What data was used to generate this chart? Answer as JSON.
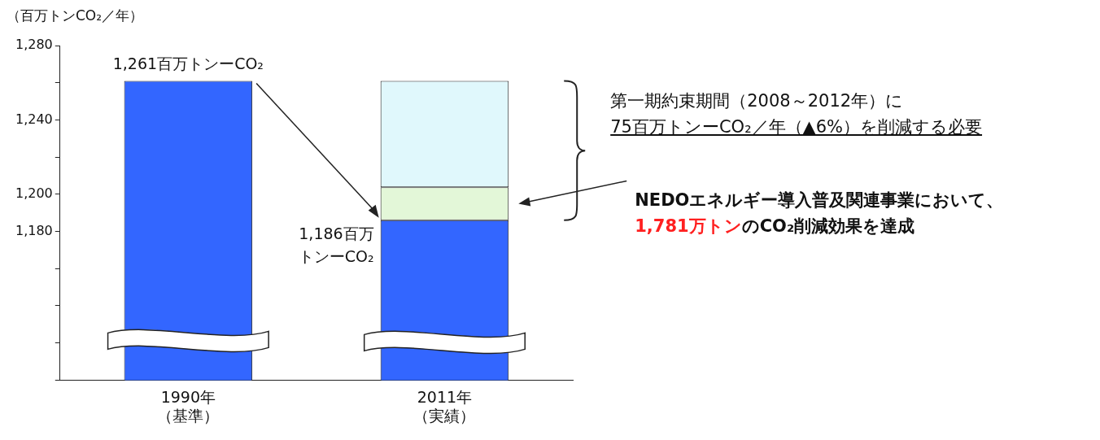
{
  "chart_data": {
    "type": "bar",
    "stacked": true,
    "ylabel": "（百万トンCO₂／年）",
    "categories": [
      "1990年（基準）",
      "2011年（実績）"
    ],
    "series": [
      {
        "color": "#3366ff",
        "values": [
          1261,
          1186
        ]
      },
      {
        "color": "#e3f7d8",
        "base": [
          null,
          1186
        ],
        "values": [
          null,
          17.8
        ]
      },
      {
        "color": "#e0f8fc",
        "base": [
          null,
          1203.8
        ],
        "values": [
          null,
          57.2
        ]
      }
    ],
    "ylim": [
      1100,
      1280
    ],
    "yticks": [
      {
        "value": 1100,
        "label": null
      },
      {
        "value": 1120,
        "label": null
      },
      {
        "value": 1140,
        "label": null
      },
      {
        "value": 1160,
        "label": null
      },
      {
        "value": 1180,
        "label": "1,180"
      },
      {
        "value": 1200,
        "label": "1,200"
      },
      {
        "value": 1220,
        "label": null
      },
      {
        "value": 1240,
        "label": "1,240"
      },
      {
        "value": 1260,
        "label": null
      },
      {
        "value": 1280,
        "label": "1,280"
      }
    ],
    "grid": false,
    "legend": false,
    "annotations": [
      {
        "text": "1,261百万トンーCO₂",
        "x": "1990年（基準）",
        "y": 1261
      },
      "1,186百万トンーCO₂",
      "第一期約束期間（2008～2012年）に",
      "75百万トンーCO₂／年（▲6%）を削減する必要",
      "NEDOエネルギー導入普及関連事業において、",
      "1,781万トン",
      "のCO₂削減効果を達成"
    ]
  }
}
